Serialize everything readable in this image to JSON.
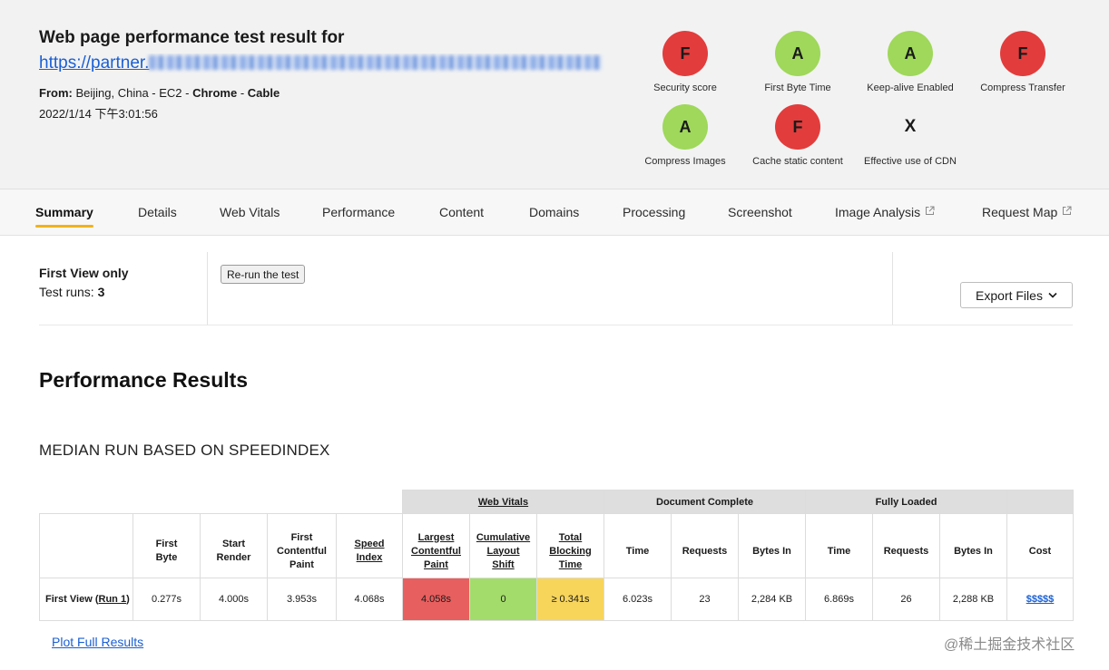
{
  "header": {
    "title": "Web page performance test result for",
    "url_text": "https://partner.",
    "from_label": "From:",
    "location": "Beijing, China - EC2",
    "sep1": " - ",
    "browser": "Chrome",
    "sep2": " - ",
    "connection": "Cable",
    "timestamp": "2022/1/14 下午3:01:56"
  },
  "grades": [
    {
      "grade": "F",
      "label": "Security score"
    },
    {
      "grade": "A",
      "label": "First Byte Time"
    },
    {
      "grade": "A",
      "label": "Keep-alive Enabled"
    },
    {
      "grade": "F",
      "label": "Compress Transfer"
    },
    {
      "grade": "A",
      "label": "Compress Images"
    },
    {
      "grade": "F",
      "label": "Cache static content"
    },
    {
      "grade": "X",
      "label": "Effective use of CDN"
    }
  ],
  "tabs": [
    "Summary",
    "Details",
    "Web Vitals",
    "Performance",
    "Content",
    "Domains",
    "Processing",
    "Screenshot",
    "Image Analysis",
    "Request Map"
  ],
  "run_info": {
    "view": "First View only",
    "runs_label": "Test runs:",
    "runs_value": "3",
    "rerun_button": "Re-run the test",
    "export_button": "Export Files"
  },
  "performance": {
    "title": "Performance Results",
    "median": "MEDIAN RUN BASED ON SPEEDINDEX"
  },
  "table": {
    "groups": {
      "web_vitals": "Web Vitals",
      "document_complete": "Document Complete",
      "fully_loaded": "Fully Loaded"
    },
    "columns": {
      "first_byte": [
        "First",
        "Byte"
      ],
      "start_render": [
        "Start",
        "Render"
      ],
      "fcp": [
        "First",
        "Contentful",
        "Paint"
      ],
      "speed_index": [
        "Speed",
        "Index"
      ],
      "lcp": [
        "Largest",
        "Contentful",
        "Paint"
      ],
      "cls": [
        "Cumulative",
        "Layout",
        "Shift"
      ],
      "tbt": [
        "Total",
        "Blocking",
        "Time"
      ],
      "dc_time": "Time",
      "dc_requests": "Requests",
      "dc_bytes": "Bytes In",
      "fl_time": "Time",
      "fl_requests": "Requests",
      "fl_bytes": "Bytes In",
      "cost": "Cost"
    },
    "row": {
      "label": "First View",
      "run_link": "Run 1",
      "first_byte": "0.277s",
      "start_render": "4.000s",
      "fcp": "3.953s",
      "speed_index": "4.068s",
      "lcp": "4.058s",
      "cls": "0",
      "tbt": "≥ 0.341s",
      "dc_time": "6.023s",
      "dc_requests": "23",
      "dc_bytes": "2,284 KB",
      "fl_time": "6.869s",
      "fl_requests": "26",
      "fl_bytes": "2,288 KB",
      "cost": "$$$$$"
    }
  },
  "plot_link": "Plot Full Results",
  "watermark": "@稀土掘金技术社区",
  "colors": {
    "grade_f": "#e23c3c",
    "grade_a": "#9fd85a",
    "link": "#1a5fd4",
    "tab_underline": "#f0b21b",
    "cell_red": "#e85f5f",
    "cell_green": "#a4dc6b",
    "cell_yellow": "#f7d55b"
  }
}
